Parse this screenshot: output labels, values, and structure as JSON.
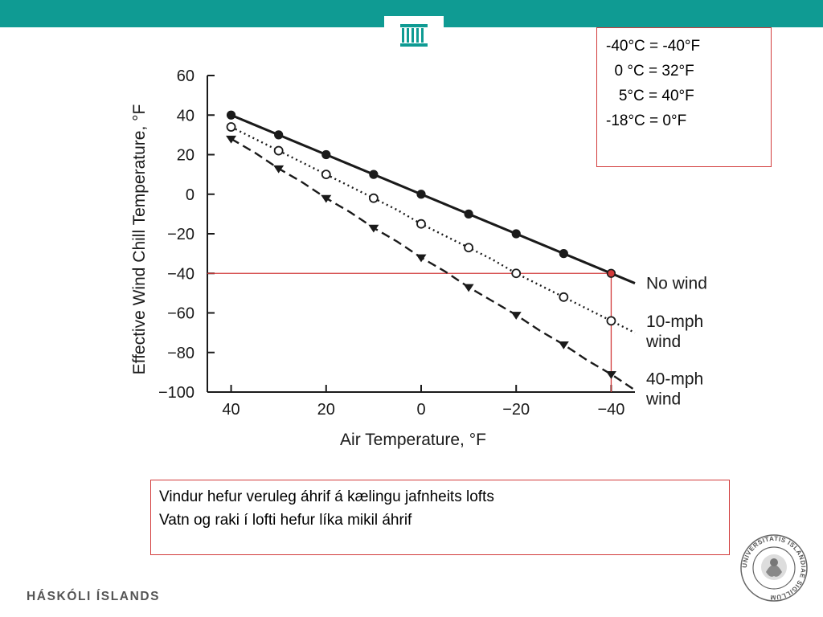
{
  "header": {
    "color": "#0f9b93"
  },
  "conversions": [
    "-40°C = -40°F",
    "  0 °C = 32°F",
    "   5°C = 40°F",
    "-18°C = 0°F"
  ],
  "notes": [
    "Vindur hefur veruleg áhrif á kælingu jafnheits lofts",
    "Vatn og raki í lofti hefur líka mikil áhrif"
  ],
  "footer": {
    "university_name": "HÁSKÓLI ÍSLANDS",
    "seal_text": "UNIVERSITATIS ISLANDIAE SIGILLUM"
  },
  "colors": {
    "accent": "#0f9b93",
    "highlight": "#d23b3b",
    "ink": "#1a1a1a"
  },
  "chart_data": {
    "type": "line",
    "xlabel": "Air Temperature, °F",
    "ylabel": "Effective Wind Chill Temperature, °F",
    "x_reversed": true,
    "xlim": [
      45,
      -45
    ],
    "ylim": [
      -100,
      60
    ],
    "xticks": [
      40,
      20,
      0,
      -20,
      -40
    ],
    "xtick_labels": [
      "40",
      "20",
      "0",
      "−20",
      "−40"
    ],
    "yticks": [
      60,
      40,
      20,
      0,
      -20,
      -40,
      -60,
      -80,
      -100
    ],
    "ytick_labels": [
      "60",
      "40",
      "20",
      "0",
      "−20",
      "−40",
      "−60",
      "−80",
      "−100"
    ],
    "x": [
      40,
      35,
      30,
      25,
      20,
      15,
      10,
      5,
      0,
      -5,
      -10,
      -15,
      -20,
      -25,
      -30,
      -35,
      -40,
      -45
    ],
    "series": [
      {
        "name": "No wind",
        "label_lines": [
          "No wind"
        ],
        "marker": "filled-circle",
        "line": "solid",
        "values": [
          40,
          35,
          30,
          25,
          20,
          15,
          10,
          5,
          0,
          -5,
          -10,
          -15,
          -20,
          -25,
          -30,
          -35,
          -40,
          -45
        ]
      },
      {
        "name": "10-mph wind",
        "label_lines": [
          "10-mph",
          "wind"
        ],
        "marker": "open-circle",
        "line": "dotted",
        "values": [
          34,
          28,
          22,
          16,
          10,
          4,
          -2,
          -8,
          -15,
          -21,
          -27,
          -33,
          -40,
          -46,
          -52,
          -58,
          -64,
          -70
        ]
      },
      {
        "name": "40-mph wind",
        "label_lines": [
          "40-mph",
          "wind"
        ],
        "marker": "filled-triangle-down",
        "line": "dashed",
        "values": [
          28,
          21,
          13,
          6,
          -2,
          -9,
          -17,
          -24,
          -32,
          -39,
          -47,
          -54,
          -61,
          -69,
          -76,
          -84,
          -91,
          -99
        ]
      }
    ],
    "annotation": {
      "x": -40,
      "y": -40,
      "color": "#d23b3b"
    }
  }
}
